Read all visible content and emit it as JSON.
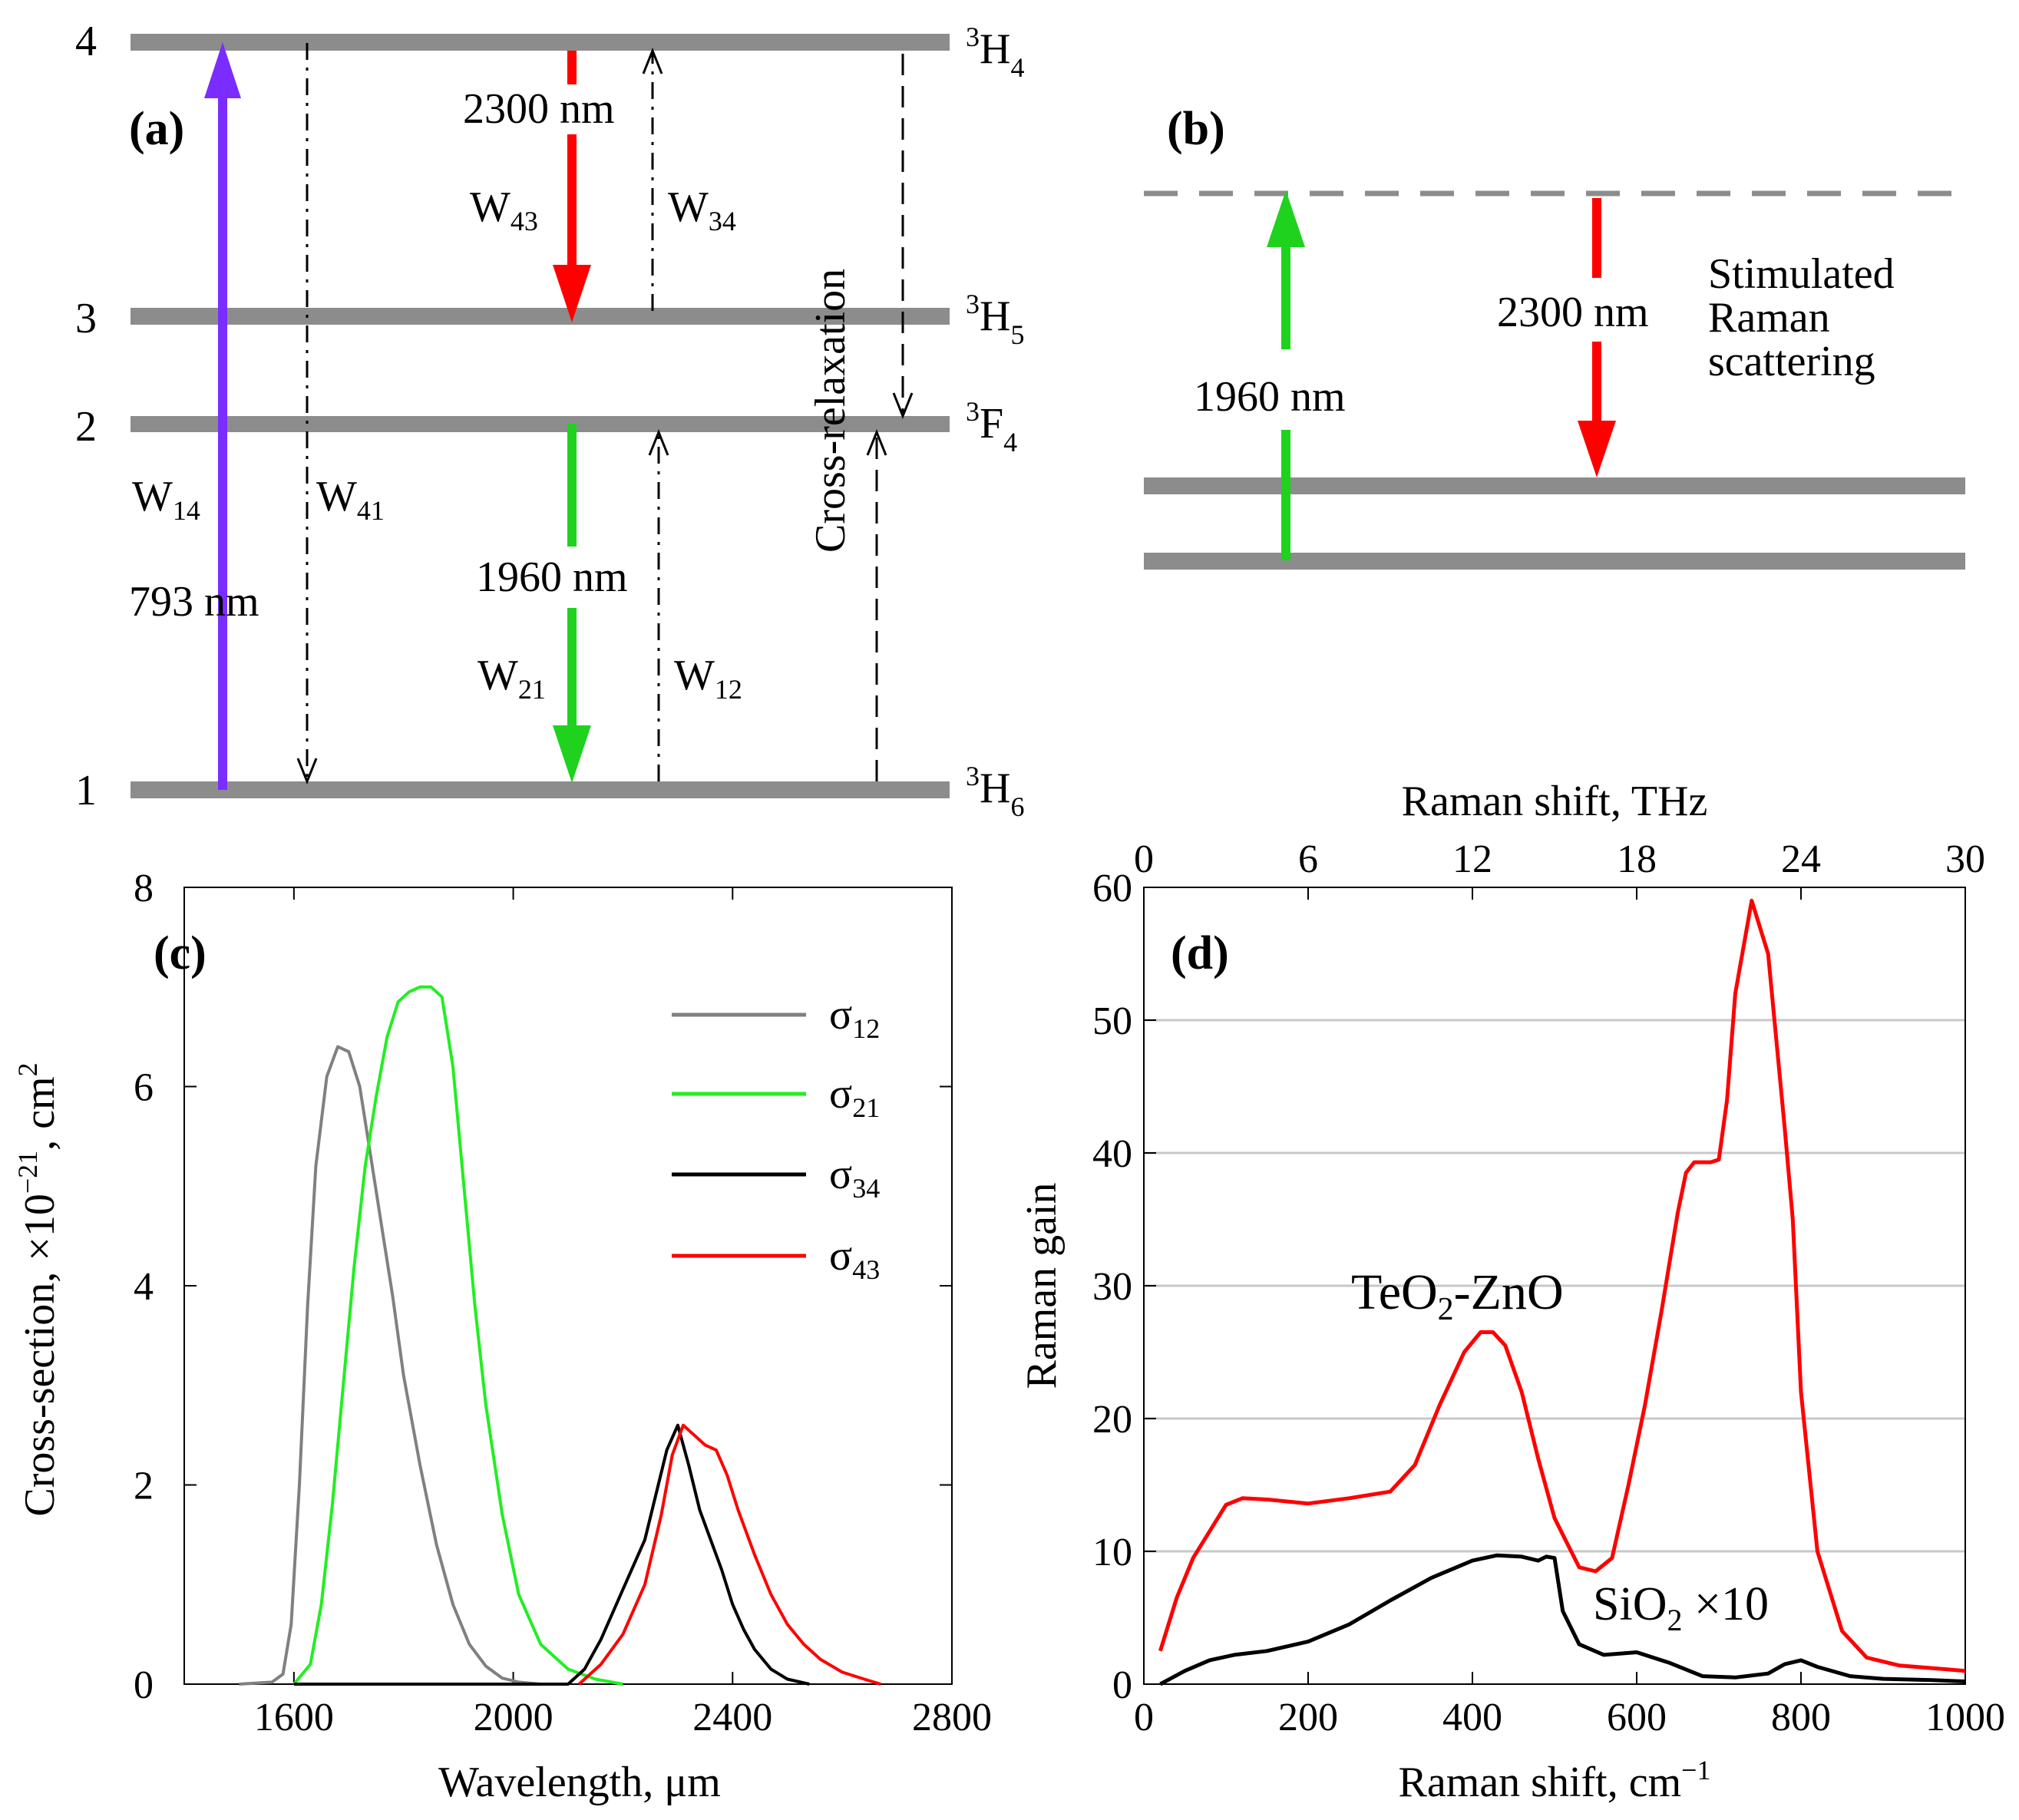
{
  "colors": {
    "level": "#8c8c8c",
    "violet": "#7b2cff",
    "red": "#ff0000",
    "green": "#1ed21e",
    "gray_series": "#808080",
    "green_series": "#22ee22",
    "black": "#000000",
    "grid": "#c8c8c8",
    "wavelength_label": "#3a1a1a"
  },
  "panel_a": {
    "label": "(a)",
    "level_numbers": [
      "1",
      "2",
      "3",
      "4"
    ],
    "level_names": [
      {
        "main": "H",
        "sup": "3",
        "sub": "6"
      },
      {
        "main": "F",
        "sup": "3",
        "sub": "4"
      },
      {
        "main": "H",
        "sup": "3",
        "sub": "5"
      },
      {
        "main": "H",
        "sup": "3",
        "sub": "4"
      }
    ],
    "w14": {
      "main": "W",
      "sub": "14"
    },
    "w41": {
      "main": "W",
      "sub": "41"
    },
    "w43": {
      "main": "W",
      "sub": "43"
    },
    "w34": {
      "main": "W",
      "sub": "34"
    },
    "w21": {
      "main": "W",
      "sub": "21"
    },
    "w12": {
      "main": "W",
      "sub": "12"
    },
    "pump_wavelength": "793 nm",
    "red_wavelength": "2300 nm",
    "green_wavelength": "1960 nm",
    "cross_relaxation": "Cross-relaxation"
  },
  "panel_b": {
    "label": "(b)",
    "green_wavelength": "1960 nm",
    "red_wavelength": "2300 nm",
    "srs_lines": [
      "Stimulated",
      "Raman",
      "scattering"
    ]
  },
  "chart_data": [
    {
      "id": "c",
      "type": "line",
      "panel_label": "(c)",
      "xlabel": "Wavelength, μm",
      "ylabel_main": "Cross-section, ×10",
      "ylabel_exp": "−21",
      "ylabel_unit": ", cm",
      "ylabel_unit_exp": "2",
      "xlim": [
        1400,
        2800
      ],
      "ylim": [
        0,
        8
      ],
      "xticks": [
        1600,
        2000,
        2400,
        2800
      ],
      "yticks": [
        0,
        2,
        4,
        6,
        8
      ],
      "legend_position": "top-right",
      "series": [
        {
          "name": "σ",
          "sub": "12",
          "color": "#808080",
          "x": [
            1500,
            1560,
            1580,
            1595,
            1610,
            1625,
            1640,
            1660,
            1680,
            1700,
            1720,
            1740,
            1760,
            1780,
            1800,
            1830,
            1860,
            1890,
            1920,
            1950,
            1980,
            2010,
            2050
          ],
          "y": [
            0,
            0.02,
            0.1,
            0.6,
            2.0,
            3.8,
            5.2,
            6.1,
            6.4,
            6.35,
            6.0,
            5.3,
            4.6,
            3.9,
            3.1,
            2.2,
            1.4,
            0.8,
            0.4,
            0.18,
            0.06,
            0.02,
            0
          ]
        },
        {
          "name": "σ",
          "sub": "21",
          "color": "#22ee22",
          "x": [
            1600,
            1630,
            1650,
            1670,
            1690,
            1710,
            1730,
            1750,
            1770,
            1790,
            1810,
            1830,
            1850,
            1870,
            1890,
            1910,
            1930,
            1950,
            1980,
            2010,
            2050,
            2100,
            2150,
            2200
          ],
          "y": [
            0,
            0.2,
            0.8,
            1.8,
            3.0,
            4.2,
            5.2,
            5.9,
            6.5,
            6.85,
            6.95,
            7.0,
            7.0,
            6.9,
            6.2,
            5.0,
            3.8,
            2.8,
            1.7,
            0.9,
            0.4,
            0.15,
            0.05,
            0
          ]
        },
        {
          "name": "σ",
          "sub": "34",
          "color": "#000000",
          "x": [
            1600,
            2100,
            2130,
            2160,
            2200,
            2240,
            2260,
            2280,
            2300,
            2320,
            2340,
            2360,
            2380,
            2400,
            2420,
            2440,
            2470,
            2500,
            2540
          ],
          "y": [
            0,
            0,
            0.15,
            0.45,
            0.95,
            1.45,
            1.9,
            2.35,
            2.6,
            2.2,
            1.75,
            1.45,
            1.15,
            0.8,
            0.55,
            0.35,
            0.15,
            0.05,
            0
          ]
        },
        {
          "name": "σ",
          "sub": "43",
          "color": "#ff0000",
          "x": [
            2120,
            2160,
            2200,
            2240,
            2270,
            2290,
            2310,
            2330,
            2350,
            2370,
            2390,
            2410,
            2440,
            2470,
            2500,
            2530,
            2560,
            2600,
            2640,
            2670
          ],
          "y": [
            0,
            0.2,
            0.5,
            1.0,
            1.7,
            2.3,
            2.6,
            2.5,
            2.4,
            2.35,
            2.1,
            1.75,
            1.3,
            0.9,
            0.6,
            0.4,
            0.25,
            0.12,
            0.05,
            0
          ]
        }
      ]
    },
    {
      "id": "d",
      "type": "line",
      "panel_label": "(d)",
      "xlabel_main": "Raman shift, cm",
      "xlabel_exp": "−1",
      "ylabel": "Raman gain",
      "top_axis_label": "Raman shift, THz",
      "xlim": [
        0,
        1000
      ],
      "ylim": [
        0,
        60
      ],
      "top_xlim": [
        0,
        30
      ],
      "xticks": [
        0,
        200,
        400,
        600,
        800,
        1000
      ],
      "top_xticks": [
        0,
        6,
        12,
        18,
        24,
        30
      ],
      "yticks": [
        0,
        10,
        20,
        30,
        40,
        50,
        60
      ],
      "grid": true,
      "series": [
        {
          "name": "TeO",
          "sub": "2",
          "suffix": "-ZnO",
          "color": "#ff0000",
          "x": [
            20,
            40,
            60,
            80,
            100,
            120,
            150,
            200,
            250,
            300,
            330,
            360,
            390,
            410,
            425,
            440,
            460,
            480,
            500,
            530,
            550,
            570,
            590,
            610,
            630,
            650,
            660,
            670,
            680,
            690,
            700,
            710,
            720,
            740,
            760,
            780,
            790,
            800,
            820,
            850,
            880,
            920,
            1000
          ],
          "y": [
            2.5,
            6.5,
            9.5,
            11.5,
            13.5,
            14.0,
            13.9,
            13.6,
            14.0,
            14.5,
            16.5,
            21.0,
            25.0,
            26.5,
            26.5,
            25.5,
            22.0,
            17.0,
            12.5,
            8.8,
            8.5,
            9.5,
            15.0,
            21.0,
            28.0,
            35.5,
            38.5,
            39.3,
            39.3,
            39.3,
            39.5,
            44.0,
            52.0,
            59.0,
            55.0,
            42.0,
            35.0,
            22.0,
            10.0,
            4.0,
            2.0,
            1.4,
            1.0
          ]
        },
        {
          "name": "SiO",
          "sub": "2",
          "suffix": " ×10",
          "color": "#000000",
          "x": [
            20,
            50,
            80,
            110,
            150,
            200,
            250,
            300,
            350,
            400,
            430,
            460,
            480,
            490,
            500,
            510,
            530,
            560,
            600,
            640,
            680,
            720,
            760,
            780,
            800,
            820,
            860,
            900,
            960,
            1000
          ],
          "y": [
            0,
            1.0,
            1.8,
            2.2,
            2.5,
            3.2,
            4.5,
            6.3,
            8.0,
            9.3,
            9.7,
            9.6,
            9.3,
            9.6,
            9.5,
            5.5,
            3.0,
            2.2,
            2.4,
            1.6,
            0.6,
            0.5,
            0.8,
            1.5,
            1.8,
            1.3,
            0.6,
            0.4,
            0.3,
            0.2
          ]
        }
      ]
    }
  ]
}
